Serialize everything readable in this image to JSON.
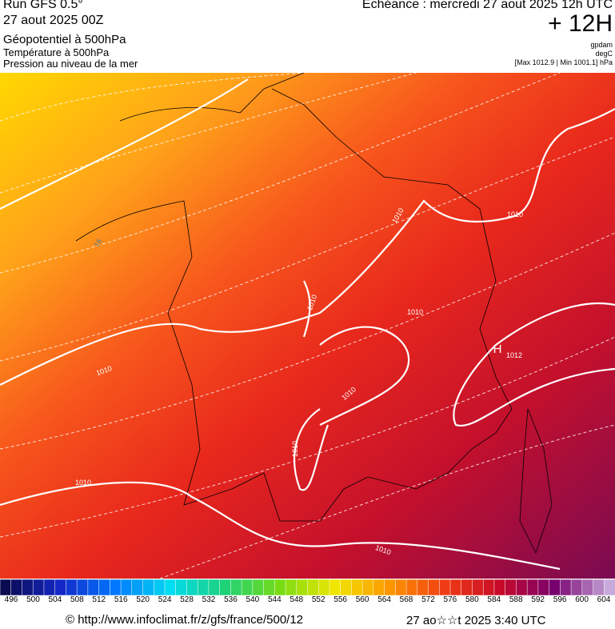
{
  "header": {
    "run": "Run GFS 0.5°",
    "date": "27 aout 2025 00Z",
    "field1": "Géopotentiel à 500hPa",
    "field2": "Température à 500hPa",
    "field3": "Pression au niveau de la mer",
    "echeance": "Echéance : mercredi 27 aout 2025 12h UTC",
    "offset": "+ 12H",
    "unit1": "gpdam",
    "unit2": "degC",
    "range": "[Max 1012.9 | Min 1001.1] hPa"
  },
  "map": {
    "contour_labels": [
      "1010",
      "1010",
      "1010",
      "1010",
      "1010",
      "1010",
      "1010",
      "1010",
      "1010",
      "16",
      "H",
      "1012"
    ]
  },
  "colorbar": {
    "labels": [
      496,
      500,
      504,
      508,
      512,
      516,
      520,
      524,
      528,
      532,
      536,
      540,
      544,
      548,
      552,
      556,
      560,
      564,
      568,
      572,
      576,
      580,
      584,
      588,
      592,
      596,
      600,
      604
    ]
  },
  "footer": {
    "url": "© http://www.infoclimat.fr/z/gfs/france/500/12",
    "timestamp": "27 ao☆☆t 2025  3:40 UTC"
  }
}
